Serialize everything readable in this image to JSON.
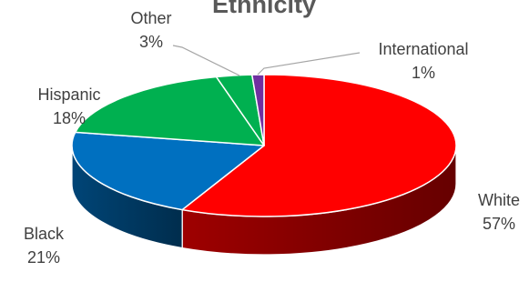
{
  "chart_data": {
    "type": "pie",
    "title": "Ethnicity",
    "categories": [
      "White",
      "Black",
      "Hispanic",
      "Other",
      "International"
    ],
    "values": [
      57,
      21,
      18,
      3,
      1
    ],
    "value_labels": [
      "57%",
      "21%",
      "18%",
      "3%",
      "1%"
    ],
    "colors": {
      "White": "#ff0000",
      "Black": "#0070c0",
      "Hispanic": "#00b050",
      "Other": "#00b050",
      "International": "#7030a0"
    },
    "style": "3d-pie",
    "legend": "none"
  }
}
